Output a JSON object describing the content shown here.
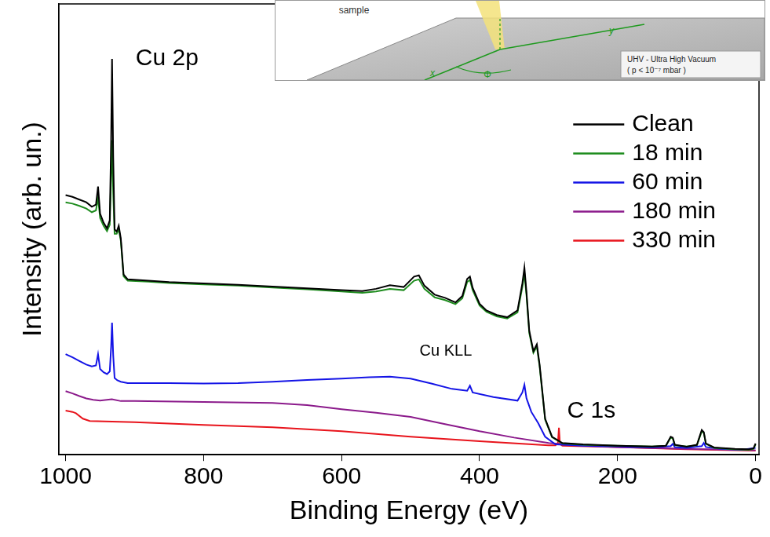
{
  "chart_data": {
    "type": "line",
    "x_label": "Binding Energy (eV)",
    "y_label": "Intensity (arb. un.)",
    "xlim": [
      1010,
      -5
    ],
    "xticks": [
      1000,
      800,
      600,
      400,
      200,
      0
    ],
    "ylim": [
      0,
      100
    ],
    "tick_labels": "x",
    "grid": false,
    "legend": "upper right",
    "annotations": [
      {
        "text": "Cu 2p",
        "x": 853,
        "y": 87.8
      },
      {
        "text": "Cu KLL",
        "x": 449,
        "y": 22.9
      },
      {
        "text": "C 1s",
        "x": 238,
        "y": 9.6
      }
    ],
    "series": [
      {
        "name": "Clean",
        "color": "#000000",
        "marker": "none",
        "line_style": "solid",
        "x": [
          1000,
          990,
          980,
          970,
          962,
          956,
          953,
          950,
          945,
          940,
          936,
          934,
          932.7,
          931,
          929,
          926,
          923,
          920,
          916,
          910,
          880,
          850,
          800,
          750,
          700,
          650,
          600,
          570,
          550,
          530,
          510,
          495,
          488,
          480,
          465,
          450,
          435,
          425,
          418,
          414,
          410,
          400,
          390,
          375,
          360,
          345,
          338,
          335,
          332,
          328,
          322,
          317,
          313,
          305,
          295,
          280,
          250,
          200,
          150,
          130,
          123,
          120,
          117,
          100,
          85,
          78,
          75,
          72,
          60,
          30,
          10,
          3,
          0
        ],
        "values": [
          57.6,
          57.2,
          56.6,
          56.0,
          55.0,
          55.5,
          59.5,
          53.5,
          51.5,
          50.2,
          52.0,
          70.0,
          87.8,
          66.0,
          50.0,
          49.5,
          50.8,
          48.0,
          40.0,
          38.9,
          38.6,
          38.3,
          38.0,
          37.7,
          37.3,
          36.9,
          36.5,
          36.3,
          36.8,
          37.6,
          37.2,
          39.5,
          39.8,
          37.5,
          35.5,
          34.8,
          33.8,
          35.2,
          39.0,
          39.5,
          37.0,
          33.5,
          32.0,
          31.0,
          30.5,
          32.0,
          38.0,
          41.5,
          36.0,
          27.5,
          23.0,
          24.5,
          20.0,
          8.0,
          4.0,
          2.6,
          2.3,
          2.0,
          1.8,
          2.0,
          4.0,
          3.8,
          2.2,
          1.8,
          2.2,
          5.5,
          5.0,
          2.5,
          1.6,
          1.3,
          1.2,
          1.4,
          2.5
        ]
      },
      {
        "name": "18 min",
        "color": "#1e8c1e",
        "marker": "none",
        "line_style": "solid",
        "x": [
          1000,
          990,
          980,
          970,
          962,
          956,
          953,
          950,
          945,
          940,
          936,
          934,
          932.7,
          931,
          929,
          926,
          923,
          920,
          916,
          910,
          880,
          850,
          800,
          750,
          700,
          650,
          600,
          570,
          550,
          530,
          510,
          495,
          488,
          480,
          465,
          450,
          435,
          425,
          418,
          414,
          410,
          400,
          390,
          375,
          360,
          345,
          338,
          335,
          332,
          328,
          322,
          317,
          313,
          305,
          295,
          280,
          250,
          200,
          150,
          130,
          123,
          120,
          117,
          100,
          85,
          78,
          75,
          72,
          60,
          30,
          10,
          3,
          0
        ],
        "values": [
          56.0,
          55.7,
          55.2,
          54.6,
          53.8,
          54.2,
          57.0,
          52.5,
          50.8,
          49.6,
          51.0,
          62.0,
          69.8,
          58.0,
          49.0,
          49.0,
          50.0,
          47.5,
          39.6,
          38.6,
          38.4,
          38.1,
          37.8,
          37.5,
          37.1,
          36.7,
          36.2,
          35.9,
          36.2,
          36.8,
          36.5,
          38.6,
          38.9,
          36.8,
          34.9,
          34.3,
          33.4,
          34.7,
          38.3,
          38.8,
          36.5,
          33.1,
          31.7,
          30.7,
          30.2,
          31.6,
          37.2,
          40.2,
          35.3,
          27.0,
          22.6,
          24.0,
          19.6,
          7.8,
          3.9,
          2.5,
          2.2,
          2.0,
          1.8,
          2.0,
          3.8,
          3.6,
          2.1,
          1.8,
          2.1,
          5.2,
          4.8,
          2.4,
          1.5,
          1.2,
          1.1,
          1.3,
          2.3
        ]
      },
      {
        "name": "60 min",
        "color": "#1414e6",
        "marker": "none",
        "line_style": "solid",
        "x": [
          1000,
          990,
          980,
          970,
          962,
          956,
          953,
          950,
          945,
          940,
          936,
          934,
          932.7,
          931,
          929,
          925,
          920,
          910,
          850,
          800,
          750,
          700,
          650,
          600,
          560,
          530,
          500,
          470,
          440,
          418,
          414,
          410,
          380,
          345,
          338,
          335,
          332,
          325,
          315,
          305,
          290,
          250,
          200,
          150,
          123,
          120,
          117,
          100,
          78,
          75,
          72,
          50,
          20,
          0
        ],
        "values": [
          22.3,
          21.6,
          20.8,
          20.0,
          19.6,
          19.8,
          22.3,
          19.0,
          18.3,
          17.9,
          18.5,
          24.0,
          29.3,
          22.0,
          17.0,
          16.5,
          16.2,
          15.9,
          15.9,
          15.8,
          15.9,
          16.2,
          16.6,
          16.9,
          17.2,
          17.3,
          16.9,
          15.8,
          14.6,
          14.2,
          15.3,
          13.8,
          12.8,
          12.0,
          13.8,
          15.5,
          12.5,
          9.5,
          7.0,
          4.0,
          2.3,
          2.0,
          1.8,
          1.6,
          1.9,
          2.4,
          1.7,
          1.5,
          1.9,
          2.6,
          1.7,
          1.3,
          1.1,
          1.5
        ]
      },
      {
        "name": "180 min",
        "color": "#8b1a8b",
        "marker": "none",
        "line_style": "solid",
        "x": [
          1000,
          990,
          980,
          970,
          960,
          950,
          933,
          920,
          900,
          800,
          700,
          650,
          600,
          550,
          500,
          450,
          400,
          350,
          300,
          250,
          200,
          100,
          0
        ],
        "values": [
          14.1,
          13.6,
          13.0,
          12.5,
          12.2,
          12.0,
          12.3,
          11.9,
          11.9,
          11.7,
          11.5,
          11.0,
          10.1,
          9.3,
          8.4,
          6.8,
          5.2,
          3.8,
          2.6,
          2.0,
          1.7,
          1.3,
          1.0
        ]
      },
      {
        "name": "330 min",
        "color": "#e8141c",
        "marker": "none",
        "line_style": "solid",
        "x": [
          1000,
          990,
          985,
          975,
          965,
          900,
          800,
          700,
          600,
          500,
          400,
          300,
          290,
          286.5,
          285,
          283.5,
          280,
          200,
          100,
          0
        ],
        "values": [
          9.8,
          9.5,
          9.2,
          8.0,
          7.5,
          7.2,
          6.6,
          6.1,
          5.2,
          4.0,
          3.0,
          2.1,
          2.1,
          2.6,
          6.0,
          2.4,
          2.0,
          1.7,
          1.2,
          0.9
        ]
      }
    ]
  },
  "inset": {
    "sample_label": "sample",
    "axis_labels": {
      "x": "x",
      "y": "y",
      "angle": "Φ"
    },
    "note": [
      "UHV - Ultra High Vacuum",
      "( p < 10⁻⁷ mbar )"
    ]
  }
}
